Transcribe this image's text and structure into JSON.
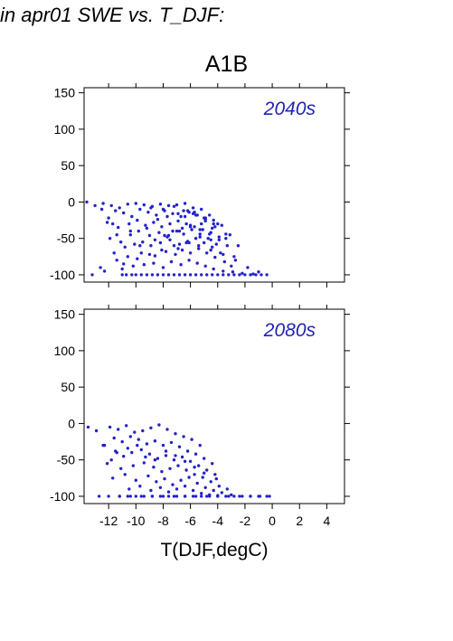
{
  "header": {
    "text": "in apr01 SWE vs. T_DJF:"
  },
  "scenario": "A1B",
  "colors": {
    "points": "#2323c8",
    "label": "#2323b0",
    "axis": "#000000"
  },
  "chart_data": [
    {
      "type": "scatter",
      "panel_label": "2040s",
      "xlabel": "T(DJF,degC)",
      "ylabel": "",
      "xlim": [
        -13.8,
        5.3
      ],
      "ylim": [
        -110,
        157
      ],
      "xticks": [
        -12,
        -10,
        -8,
        -6,
        -4,
        -2,
        0,
        2,
        4
      ],
      "yticks": [
        -100,
        -50,
        0,
        50,
        100,
        150
      ],
      "show_x_tick_labels": false,
      "x": [
        -13.6,
        -13.0,
        -12.5,
        -12.0,
        -11.7,
        -11.4,
        -11.0,
        -10.7,
        -10.3,
        -10.0,
        -9.6,
        -9.2,
        -8.8,
        -8.4,
        -8.0,
        -7.6,
        -7.2,
        -6.8,
        -6.4,
        -6.0,
        -5.6,
        -5.2,
        -4.8,
        -4.4,
        -4.0,
        -3.6,
        -3.2,
        -2.8,
        -2.4,
        -2.0,
        -1.6,
        -1.2,
        -0.8,
        -12.4,
        -11.8,
        -11.2,
        -10.6,
        -10.0,
        -9.4,
        -8.8,
        -8.2,
        -7.6,
        -7.0,
        -6.4,
        -5.8,
        -5.2,
        -4.6,
        -4.0,
        -3.4,
        -2.8,
        -11.5,
        -10.9,
        -10.3,
        -9.7,
        -9.1,
        -8.5,
        -7.9,
        -7.3,
        -6.7,
        -6.1,
        -5.5,
        -4.9,
        -4.3,
        -3.7,
        -3.1,
        -2.5,
        -12.1,
        -11.3,
        -10.5,
        -9.9,
        -9.3,
        -8.7,
        -8.1,
        -7.5,
        -6.9,
        -6.3,
        -5.7,
        -5.1,
        -4.5,
        -3.9,
        -3.3,
        -11.9,
        -11.1,
        -10.4,
        -9.8,
        -9.0,
        -8.3,
        -7.7,
        -7.0,
        -6.5,
        -5.9,
        -5.3,
        -4.7,
        -4.1,
        -11.6,
        -10.8,
        -10.1,
        -9.5,
        -8.9,
        -8.2,
        -7.5,
        -6.8,
        -6.2,
        -5.6,
        -5.0,
        -4.4,
        -3.8,
        -12.6,
        -11.4,
        -10.6,
        -9.6,
        -8.6,
        -7.8,
        -7.1,
        -6.6,
        -6.0,
        -5.4,
        -4.8,
        -4.2,
        -3.5,
        -3.0,
        -13.2,
        -12.3,
        -11.0,
        -10.2,
        -9.4,
        -8.7,
        -8.0,
        -7.4,
        -6.7,
        -6.1,
        -5.5,
        -4.9,
        -4.3,
        -3.6,
        -2.9,
        -2.2,
        -1.4,
        -0.4,
        -10.9,
        -9.9,
        -9.0,
        -8.1,
        -7.2,
        -6.3,
        -5.4,
        -4.5,
        -3.6,
        -2.7,
        -1.8,
        -1.0,
        -10.4,
        -9.2,
        -8.4,
        -7.7,
        -6.9,
        -6.2,
        -5.6,
        -4.9,
        -4.2,
        -3.4,
        -9.7,
        -8.6,
        -7.9,
        -7.3,
        -6.6,
        -6.0,
        -5.3,
        -4.6,
        -3.9,
        -8.9,
        -8.0,
        -7.2,
        -6.5,
        -5.8,
        -5.0,
        -4.3,
        -7.6,
        -6.8,
        -6.0,
        -5.2,
        -4.4,
        -6.9,
        -6.1,
        -5.3,
        -4.5,
        -6.4,
        -5.7,
        -4.9
      ],
      "y": [
        0,
        -5,
        -10,
        -22,
        -30,
        -45,
        -100,
        -100,
        -100,
        -100,
        -100,
        -100,
        -100,
        -100,
        -100,
        -100,
        -100,
        -100,
        -100,
        -100,
        -100,
        -100,
        -100,
        -100,
        -100,
        -100,
        -100,
        -100,
        -100,
        -100,
        -100,
        -100,
        -100,
        -2,
        -5,
        -8,
        -3,
        -2,
        -4,
        -6,
        -3,
        -5,
        -4,
        -2,
        -8,
        -10,
        -18,
        -30,
        -50,
        -75,
        -12,
        -15,
        -20,
        -10,
        -14,
        -18,
        -12,
        -16,
        -20,
        -14,
        -18,
        -22,
        -25,
        -32,
        -45,
        -60,
        -28,
        -35,
        -30,
        -25,
        -32,
        -28,
        -34,
        -30,
        -26,
        -30,
        -34,
        -38,
        -42,
        -48,
        -60,
        -50,
        -55,
        -45,
        -40,
        -46,
        -42,
        -48,
        -40,
        -44,
        -38,
        -44,
        -50,
        -58,
        -70,
        -62,
        -58,
        -55,
        -60,
        -56,
        -52,
        -58,
        -54,
        -50,
        -56,
        -62,
        -70,
        -90,
        -80,
        -75,
        -70,
        -74,
        -68,
        -72,
        -66,
        -70,
        -64,
        -70,
        -76,
        -82,
        -88,
        -100,
        -95,
        -92,
        -88,
        -86,
        -84,
        -90,
        -82,
        -86,
        -80,
        -84,
        -88,
        -92,
        -95,
        -96,
        -98,
        -99,
        -100,
        -85,
        -78,
        -72,
        -66,
        -60,
        -56,
        -60,
        -66,
        -72,
        -80,
        -90,
        -96,
        -40,
        -36,
        -24,
        -20,
        -16,
        -12,
        -18,
        -24,
        -34,
        -44,
        -60,
        -52,
        -46,
        -40,
        -36,
        -32,
        -38,
        -44,
        -52,
        -8,
        -10,
        -6,
        -12,
        -16,
        -22,
        -30,
        -46,
        -40,
        -34,
        -30,
        -36,
        -64,
        -56,
        -48,
        -52,
        -20,
        -14,
        -26
      ]
    },
    {
      "type": "scatter",
      "panel_label": "2080s",
      "xlabel": "T(DJF,degC)",
      "ylabel": "",
      "xlim": [
        -13.8,
        5.3
      ],
      "ylim": [
        -110,
        157
      ],
      "xticks": [
        -12,
        -10,
        -8,
        -6,
        -4,
        -2,
        0,
        2,
        4
      ],
      "yticks": [
        -100,
        -50,
        0,
        50,
        100,
        150
      ],
      "show_x_tick_labels": true,
      "x": [
        -13.5,
        -12.9,
        -12.3,
        -11.8,
        -11.2,
        -10.6,
        -10.0,
        -9.4,
        -8.8,
        -8.2,
        -7.6,
        -7.0,
        -6.4,
        -5.8,
        -5.2,
        -4.6,
        -4.0,
        -3.4,
        -2.8,
        -2.2,
        -1.6,
        -1.0,
        -0.4,
        -11.9,
        -11.3,
        -10.7,
        -10.1,
        -9.5,
        -8.9,
        -8.3,
        -7.7,
        -7.1,
        -6.5,
        -5.9,
        -5.3,
        -11.6,
        -11.0,
        -10.4,
        -9.8,
        -9.2,
        -8.6,
        -8.0,
        -7.4,
        -6.8,
        -6.2,
        -5.6,
        -5.0,
        -4.4,
        -12.4,
        -11.5,
        -10.9,
        -10.3,
        -9.6,
        -9.0,
        -8.4,
        -7.8,
        -7.2,
        -6.6,
        -6.0,
        -5.4,
        -4.8,
        -4.2,
        -12.1,
        -11.1,
        -10.2,
        -9.4,
        -8.7,
        -8.1,
        -7.5,
        -6.9,
        -6.3,
        -5.7,
        -5.1,
        -4.5,
        -3.9,
        -11.7,
        -10.8,
        -10.0,
        -9.1,
        -8.5,
        -7.9,
        -7.3,
        -6.7,
        -6.1,
        -5.5,
        -4.9,
        -4.3,
        -3.7,
        -3.0,
        -10.5,
        -9.7,
        -8.9,
        -8.2,
        -7.6,
        -7.0,
        -6.4,
        -5.8,
        -5.2,
        -4.6,
        -4.0,
        -11.4,
        -10.6,
        -9.9,
        -9.3,
        -8.6,
        -7.8,
        -7.1,
        -6.4,
        -5.7,
        -5.0,
        -4.1,
        -3.3,
        -12.7,
        -12.0,
        -11.2,
        -10.4,
        -9.6,
        -8.8,
        -8.0,
        -7.2,
        -6.4,
        -5.6,
        -4.8,
        -4.0,
        -3.2,
        -2.4,
        -1.6,
        -0.9,
        -0.2
      ],
      "y": [
        -5,
        -10,
        -30,
        -50,
        -100,
        -100,
        -100,
        -100,
        -100,
        -100,
        -100,
        -100,
        -100,
        -100,
        -100,
        -100,
        -100,
        -100,
        -100,
        -100,
        -100,
        -100,
        -100,
        -5,
        -8,
        -3,
        -12,
        -10,
        -6,
        -2,
        -8,
        -14,
        -18,
        -22,
        -30,
        -20,
        -25,
        -18,
        -22,
        -28,
        -24,
        -30,
        -26,
        -32,
        -38,
        -42,
        -48,
        -55,
        -30,
        -38,
        -45,
        -40,
        -36,
        -42,
        -48,
        -44,
        -50,
        -46,
        -52,
        -58,
        -64,
        -70,
        -55,
        -62,
        -58,
        -54,
        -60,
        -66,
        -62,
        -58,
        -64,
        -70,
        -74,
        -80,
        -86,
        -75,
        -70,
        -78,
        -72,
        -80,
        -76,
        -84,
        -78,
        -74,
        -82,
        -88,
        -92,
        -95,
        -98,
        -90,
        -86,
        -92,
        -88,
        -94,
        -90,
        -86,
        -92,
        -96,
        -98,
        -99,
        -40,
        -34,
        -30,
        -46,
        -50,
        -38,
        -44,
        -52,
        -60,
        -68,
        -76,
        -90,
        -100,
        -100,
        -100,
        -100,
        -100,
        -100,
        -100,
        -100,
        -100,
        -100,
        -100,
        -100,
        -100,
        -100,
        -100,
        -100,
        -100
      ]
    }
  ]
}
